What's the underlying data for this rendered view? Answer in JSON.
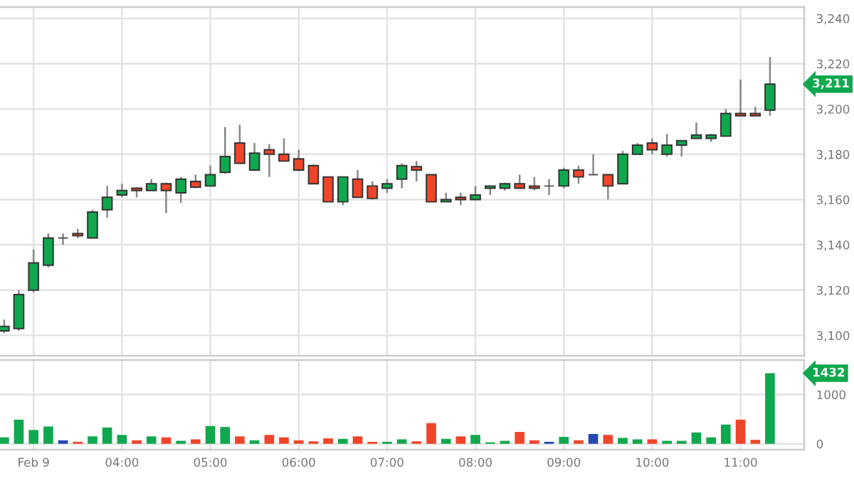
{
  "chart_data": [
    {
      "type": "candlestick",
      "x": [
        2.667,
        2.833,
        3,
        3.167,
        3.333,
        3.5,
        3.667,
        3.833,
        4,
        4.167,
        4.333,
        4.5,
        4.667,
        4.833,
        5,
        5.167,
        5.333,
        5.5,
        5.667,
        5.833,
        6,
        6.167,
        6.333,
        6.5,
        6.667,
        6.833,
        7,
        7.167,
        7.333,
        7.5,
        7.667,
        7.833,
        8,
        8.167,
        8.333,
        8.5,
        8.667,
        8.833,
        9,
        9.167,
        9.333,
        9.5,
        9.667,
        9.833,
        10,
        10.167,
        10.333,
        10.5,
        10.667,
        10.833,
        11,
        11.167,
        11.333
      ],
      "ohlc": [
        [
          3102,
          3107,
          3101,
          3104
        ],
        [
          3103,
          3120,
          3102,
          3118
        ],
        [
          3120,
          3138,
          3119,
          3132
        ],
        [
          3131,
          3145,
          3130,
          3143
        ],
        [
          3143,
          3145,
          3140,
          3143
        ],
        [
          3145,
          3147,
          3143,
          3144
        ],
        [
          3143,
          3155.5,
          3143,
          3154.5
        ],
        [
          3155.5,
          3166,
          3152,
          3161
        ],
        [
          3162,
          3167,
          3161,
          3164
        ],
        [
          3165,
          3165.5,
          3161,
          3164
        ],
        [
          3164,
          3169,
          3164,
          3167
        ],
        [
          3167,
          3167.5,
          3154,
          3164
        ],
        [
          3163,
          3170,
          3158.5,
          3169
        ],
        [
          3168,
          3171,
          3165,
          3165.5
        ],
        [
          3166,
          3175,
          3166,
          3171
        ],
        [
          3172,
          3192,
          3171.5,
          3179
        ],
        [
          3185,
          3193,
          3176,
          3176
        ],
        [
          3173,
          3185,
          3173,
          3180.5
        ],
        [
          3182,
          3184.5,
          3170,
          3180
        ],
        [
          3180,
          3187,
          3177,
          3177
        ],
        [
          3178,
          3182,
          3172.5,
          3173
        ],
        [
          3175,
          3175.5,
          3167,
          3167
        ],
        [
          3170,
          3170,
          3159,
          3159
        ],
        [
          3159,
          3170,
          3157.5,
          3170
        ],
        [
          3169,
          3173,
          3161,
          3161
        ],
        [
          3166,
          3168,
          3160,
          3160.5
        ],
        [
          3165,
          3169,
          3163,
          3167
        ],
        [
          3169,
          3176,
          3165,
          3175
        ],
        [
          3174.5,
          3177,
          3168,
          3173
        ],
        [
          3171,
          3171,
          3159,
          3159
        ],
        [
          3159,
          3163,
          3159,
          3160
        ],
        [
          3161,
          3163,
          3157.5,
          3160
        ],
        [
          3160,
          3166,
          3160,
          3162
        ],
        [
          3165,
          3166,
          3162,
          3166
        ],
        [
          3165,
          3167.5,
          3164,
          3167
        ],
        [
          3167,
          3171,
          3165,
          3165
        ],
        [
          3166,
          3170,
          3164,
          3165
        ],
        [
          3166,
          3169,
          3162,
          3166
        ],
        [
          3166,
          3174,
          3165,
          3173
        ],
        [
          3173,
          3175,
          3167,
          3170
        ],
        [
          3171,
          3180,
          3171,
          3171
        ],
        [
          3171,
          3171,
          3160,
          3166
        ],
        [
          3167,
          3181.5,
          3167,
          3180
        ],
        [
          3180,
          3185,
          3180,
          3184
        ],
        [
          3185,
          3187,
          3180,
          3182
        ],
        [
          3180,
          3189,
          3179,
          3184
        ],
        [
          3184,
          3186,
          3179,
          3186
        ],
        [
          3187,
          3194,
          3187,
          3188.5
        ],
        [
          3187,
          3189,
          3185.5,
          3188.5
        ],
        [
          3188,
          3200,
          3188,
          3198
        ],
        [
          3198,
          3213,
          3197,
          3197
        ],
        [
          3198,
          3201,
          3197,
          3197
        ],
        [
          3199.5,
          3223,
          3197,
          3211
        ]
      ],
      "colors": [
        "#10a84e",
        "#10a84e",
        "#10a84e",
        "#10a84e",
        "#555555",
        "#f0452a",
        "#10a84e",
        "#10a84e",
        "#10a84e",
        "#f0452a",
        "#10a84e",
        "#f0452a",
        "#10a84e",
        "#f0452a",
        "#10a84e",
        "#10a84e",
        "#f0452a",
        "#10a84e",
        "#f0452a",
        "#f0452a",
        "#f0452a",
        "#f0452a",
        "#f0452a",
        "#10a84e",
        "#f0452a",
        "#f0452a",
        "#10a84e",
        "#10a84e",
        "#f0452a",
        "#f0452a",
        "#10a84e",
        "#f0452a",
        "#10a84e",
        "#10a84e",
        "#10a84e",
        "#f0452a",
        "#f0452a",
        "#555555",
        "#10a84e",
        "#f0452a",
        "#555555",
        "#f0452a",
        "#10a84e",
        "#10a84e",
        "#f0452a",
        "#10a84e",
        "#10a84e",
        "#10a84e",
        "#10a84e",
        "#10a84e",
        "#f0452a",
        "#f0452a",
        "#10a84e"
      ],
      "xlim": [
        2.62,
        11.72
      ],
      "xticks": [
        {
          "value": 3,
          "label": null
        },
        {
          "value": 4,
          "label": null
        },
        {
          "value": 5,
          "label": null
        },
        {
          "value": 6,
          "label": null
        },
        {
          "value": 7,
          "label": null
        },
        {
          "value": 8,
          "label": null
        },
        {
          "value": 9,
          "label": null
        },
        {
          "value": 10,
          "label": null
        },
        {
          "value": 11,
          "label": null
        }
      ],
      "ylim": [
        3091,
        3245
      ],
      "yticks": [
        {
          "value": 3100,
          "label": "3,100"
        },
        {
          "value": 3120,
          "label": "3,120"
        },
        {
          "value": 3140,
          "label": "3,140"
        },
        {
          "value": 3160,
          "label": "3,160"
        },
        {
          "value": 3180,
          "label": "3,180"
        },
        {
          "value": 3200,
          "label": "3,200"
        },
        {
          "value": 3220,
          "label": "3,220"
        },
        {
          "value": 3240,
          "label": "3,240"
        }
      ],
      "tick_labels": "y",
      "grid": true,
      "annotations": [
        "3,211"
      ]
    },
    {
      "type": "bar",
      "x": [
        2.667,
        2.833,
        3,
        3.167,
        3.333,
        3.5,
        3.667,
        3.833,
        4,
        4.167,
        4.333,
        4.5,
        4.667,
        4.833,
        5,
        5.167,
        5.333,
        5.5,
        5.667,
        5.833,
        6,
        6.167,
        6.333,
        6.5,
        6.667,
        6.833,
        7,
        7.167,
        7.333,
        7.5,
        7.667,
        7.833,
        8,
        8.167,
        8.333,
        8.5,
        8.667,
        8.833,
        9,
        9.167,
        9.333,
        9.5,
        9.667,
        9.833,
        10,
        10.167,
        10.333,
        10.5,
        10.667,
        10.833,
        11,
        11.167,
        11.333
      ],
      "values": [
        130,
        490,
        280,
        350,
        70,
        40,
        150,
        330,
        180,
        70,
        150,
        130,
        60,
        90,
        360,
        340,
        150,
        70,
        180,
        130,
        70,
        50,
        110,
        100,
        150,
        40,
        40,
        90,
        50,
        420,
        100,
        150,
        180,
        30,
        60,
        240,
        70,
        40,
        140,
        70,
        200,
        180,
        120,
        90,
        90,
        60,
        60,
        230,
        130,
        390,
        490,
        80,
        1432
      ],
      "colors": [
        "#10a84e",
        "#10a84e",
        "#10a84e",
        "#10a84e",
        "#2448b8",
        "#f0452a",
        "#10a84e",
        "#10a84e",
        "#10a84e",
        "#f0452a",
        "#10a84e",
        "#f0452a",
        "#10a84e",
        "#f0452a",
        "#10a84e",
        "#10a84e",
        "#f0452a",
        "#10a84e",
        "#f0452a",
        "#f0452a",
        "#f0452a",
        "#f0452a",
        "#f0452a",
        "#10a84e",
        "#f0452a",
        "#f0452a",
        "#10a84e",
        "#10a84e",
        "#f0452a",
        "#f0452a",
        "#10a84e",
        "#f0452a",
        "#10a84e",
        "#10a84e",
        "#10a84e",
        "#f0452a",
        "#f0452a",
        "#2448b8",
        "#10a84e",
        "#f0452a",
        "#2448b8",
        "#f0452a",
        "#10a84e",
        "#10a84e",
        "#f0452a",
        "#10a84e",
        "#10a84e",
        "#10a84e",
        "#10a84e",
        "#10a84e",
        "#f0452a",
        "#f0452a",
        "#10a84e"
      ],
      "xlim": [
        2.62,
        11.72
      ],
      "xticks": [
        {
          "value": 3,
          "label": "Feb 9"
        },
        {
          "value": 4,
          "label": "04:00"
        },
        {
          "value": 5,
          "label": "05:00"
        },
        {
          "value": 6,
          "label": "06:00"
        },
        {
          "value": 7,
          "label": "07:00"
        },
        {
          "value": 8,
          "label": "08:00"
        },
        {
          "value": 9,
          "label": "09:00"
        },
        {
          "value": 10,
          "label": "10:00"
        },
        {
          "value": 11,
          "label": "11:00"
        }
      ],
      "ylim": [
        -120,
        1700
      ],
      "yticks": [
        0,
        1000
      ],
      "grid": true,
      "annotations": [
        "1432"
      ]
    }
  ]
}
